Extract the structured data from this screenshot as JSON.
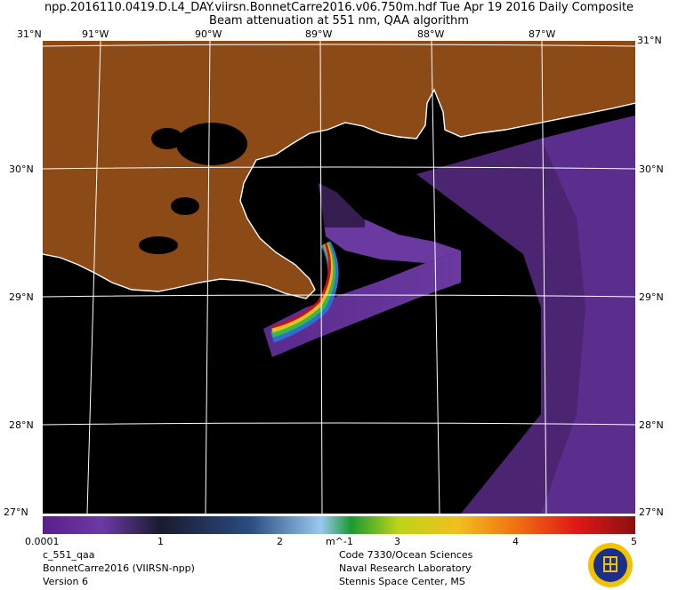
{
  "header": {
    "line1": "npp.2016110.0419.D.L4_DAY.viirsn.BonnetCarre2016.v06.750m.hdf     Tue Apr 19 2016 Daily Composite",
    "line2": "Beam attenuation at 551 nm, QAA algorithm"
  },
  "lon_labels": [
    "91°W",
    "90°W",
    "89°W",
    "88°W",
    "87°W"
  ],
  "lat_labels": [
    "31°N",
    "30°N",
    "29°N",
    "28°N"
  ],
  "corner_labels": {
    "top_left": "31°N",
    "top_right": "31°N",
    "bottom_left": "27°N",
    "bottom_right": "27°N"
  },
  "colorbar": {
    "ticks": [
      "0.0001",
      "1",
      "2",
      "3",
      "4",
      "5"
    ],
    "unit": "m^-1"
  },
  "footer": {
    "left": [
      "c_551_qaa",
      "BonnetCarre2016 (VIIRSN-npp)",
      "Version 6"
    ],
    "right": [
      "Code 7330/Ocean Sciences",
      "Naval Research Laboratory",
      "Stennis Space Center, MS"
    ]
  },
  "colors": {
    "land": "#8b4a16",
    "no_data": "#000000",
    "gridline": "#ffffff",
    "low_attenuation": "#5a2a8c",
    "high_attenuation": "#d01010"
  }
}
